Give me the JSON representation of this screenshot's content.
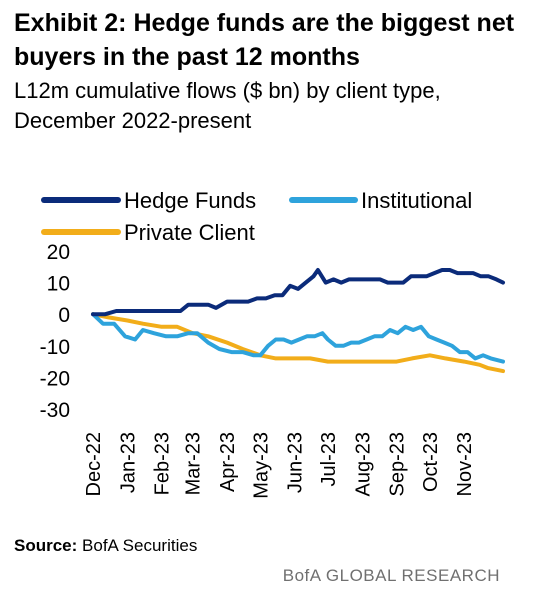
{
  "header": {
    "title": "Exhibit 2: Hedge funds are the biggest net buyers in the past 12 months",
    "subtitle": "L12m cumulative flows ($ bn) by client type, December 2022-present"
  },
  "footer": {
    "source_label": "Source:",
    "source_text": "BofA Securities",
    "brand": "BofA GLOBAL RESEARCH"
  },
  "chart_data": {
    "type": "line",
    "title": "Exhibit 2: Hedge funds are the biggest net buyers in the past 12 months",
    "subtitle": "L12m cumulative flows ($ bn) by client type, December 2022-present",
    "xlabel": "",
    "ylabel": "",
    "ylim": [
      -30,
      20
    ],
    "yticks": [
      20,
      10,
      0,
      -10,
      -20,
      -30
    ],
    "xlim": [
      "2022-12-01",
      "2023-12-06"
    ],
    "categories": [
      "Dec-22",
      "Jan-23",
      "Feb-23",
      "Mar-23",
      "Apr-23",
      "May-23",
      "Jun-23",
      "Jul-23",
      "Aug-23",
      "Sep-23",
      "Oct-23",
      "Nov-23"
    ],
    "category_dates": [
      "2022-12-01",
      "2023-01-01",
      "2023-02-01",
      "2023-03-01",
      "2023-04-01",
      "2023-05-01",
      "2023-06-01",
      "2023-07-01",
      "2023-08-01",
      "2023-09-01",
      "2023-10-01",
      "2023-11-01"
    ],
    "grid": false,
    "legend": "top",
    "colors": {
      "Hedge Funds": "#0b2b7a",
      "Institutional": "#2ea3dc",
      "Private Client": "#f2ad1a"
    },
    "series": [
      {
        "name": "Hedge Funds",
        "points": [
          [
            "2022-12-01",
            0
          ],
          [
            "2022-12-12",
            0
          ],
          [
            "2022-12-22",
            1
          ],
          [
            "2023-01-05",
            1
          ],
          [
            "2023-01-15",
            1
          ],
          [
            "2023-01-28",
            1
          ],
          [
            "2023-02-08",
            1
          ],
          [
            "2023-02-18",
            1
          ],
          [
            "2023-02-25",
            3
          ],
          [
            "2023-03-05",
            3
          ],
          [
            "2023-03-15",
            3
          ],
          [
            "2023-03-22",
            2
          ],
          [
            "2023-04-01",
            4
          ],
          [
            "2023-04-10",
            4
          ],
          [
            "2023-04-20",
            4
          ],
          [
            "2023-04-28",
            5
          ],
          [
            "2023-05-06",
            5
          ],
          [
            "2023-05-14",
            6
          ],
          [
            "2023-05-21",
            6
          ],
          [
            "2023-05-28",
            9
          ],
          [
            "2023-06-04",
            8
          ],
          [
            "2023-06-11",
            10
          ],
          [
            "2023-06-18",
            12
          ],
          [
            "2023-06-22",
            14
          ],
          [
            "2023-06-29",
            10
          ],
          [
            "2023-07-06",
            11
          ],
          [
            "2023-07-13",
            10
          ],
          [
            "2023-07-20",
            11
          ],
          [
            "2023-07-27",
            11
          ],
          [
            "2023-08-03",
            11
          ],
          [
            "2023-08-10",
            11
          ],
          [
            "2023-08-17",
            11
          ],
          [
            "2023-08-24",
            10
          ],
          [
            "2023-08-31",
            10
          ],
          [
            "2023-09-07",
            10
          ],
          [
            "2023-09-14",
            12
          ],
          [
            "2023-09-21",
            12
          ],
          [
            "2023-09-28",
            12
          ],
          [
            "2023-10-05",
            13
          ],
          [
            "2023-10-12",
            14
          ],
          [
            "2023-10-19",
            14
          ],
          [
            "2023-10-26",
            13
          ],
          [
            "2023-11-02",
            13
          ],
          [
            "2023-11-09",
            13
          ],
          [
            "2023-11-16",
            12
          ],
          [
            "2023-11-23",
            12
          ],
          [
            "2023-11-30",
            11
          ],
          [
            "2023-12-06",
            10
          ]
        ]
      },
      {
        "name": "Institutional",
        "points": [
          [
            "2022-12-01",
            0
          ],
          [
            "2022-12-10",
            -3
          ],
          [
            "2022-12-20",
            -3
          ],
          [
            "2022-12-30",
            -7
          ],
          [
            "2023-01-08",
            -8
          ],
          [
            "2023-01-15",
            -5
          ],
          [
            "2023-01-25",
            -6
          ],
          [
            "2023-02-05",
            -7
          ],
          [
            "2023-02-15",
            -7
          ],
          [
            "2023-02-25",
            -6
          ],
          [
            "2023-03-05",
            -6
          ],
          [
            "2023-03-15",
            -9
          ],
          [
            "2023-03-25",
            -11
          ],
          [
            "2023-04-05",
            -12
          ],
          [
            "2023-04-15",
            -12
          ],
          [
            "2023-04-25",
            -13
          ],
          [
            "2023-05-01",
            -13
          ],
          [
            "2023-05-08",
            -10
          ],
          [
            "2023-05-15",
            -8
          ],
          [
            "2023-05-22",
            -8
          ],
          [
            "2023-05-29",
            -9
          ],
          [
            "2023-06-05",
            -8
          ],
          [
            "2023-06-12",
            -7
          ],
          [
            "2023-06-19",
            -7
          ],
          [
            "2023-06-26",
            -6
          ],
          [
            "2023-07-01",
            -8
          ],
          [
            "2023-07-08",
            -10
          ],
          [
            "2023-07-15",
            -10
          ],
          [
            "2023-07-22",
            -9
          ],
          [
            "2023-07-29",
            -9
          ],
          [
            "2023-08-05",
            -8
          ],
          [
            "2023-08-12",
            -7
          ],
          [
            "2023-08-19",
            -7
          ],
          [
            "2023-08-26",
            -5
          ],
          [
            "2023-09-02",
            -6
          ],
          [
            "2023-09-09",
            -4
          ],
          [
            "2023-09-16",
            -5
          ],
          [
            "2023-09-23",
            -4
          ],
          [
            "2023-09-30",
            -7
          ],
          [
            "2023-10-07",
            -8
          ],
          [
            "2023-10-14",
            -9
          ],
          [
            "2023-10-21",
            -10
          ],
          [
            "2023-10-28",
            -12
          ],
          [
            "2023-11-04",
            -12
          ],
          [
            "2023-11-11",
            -14
          ],
          [
            "2023-11-18",
            -13
          ],
          [
            "2023-11-25",
            -14
          ],
          [
            "2023-12-06",
            -15
          ]
        ]
      },
      {
        "name": "Private Client",
        "points": [
          [
            "2022-12-01",
            0
          ],
          [
            "2022-12-15",
            -1
          ],
          [
            "2023-01-01",
            -2
          ],
          [
            "2023-01-15",
            -3
          ],
          [
            "2023-02-01",
            -4
          ],
          [
            "2023-02-15",
            -4
          ],
          [
            "2023-03-01",
            -6
          ],
          [
            "2023-03-15",
            -7
          ],
          [
            "2023-04-01",
            -9
          ],
          [
            "2023-04-15",
            -11
          ],
          [
            "2023-05-01",
            -13
          ],
          [
            "2023-05-15",
            -14
          ],
          [
            "2023-06-01",
            -14
          ],
          [
            "2023-06-15",
            -14
          ],
          [
            "2023-07-01",
            -15
          ],
          [
            "2023-07-15",
            -15
          ],
          [
            "2023-08-01",
            -15
          ],
          [
            "2023-08-15",
            -15
          ],
          [
            "2023-09-01",
            -15
          ],
          [
            "2023-09-15",
            -14
          ],
          [
            "2023-10-01",
            -13
          ],
          [
            "2023-10-15",
            -14
          ],
          [
            "2023-11-01",
            -15
          ],
          [
            "2023-11-15",
            -16
          ],
          [
            "2023-11-22",
            -17
          ],
          [
            "2023-12-06",
            -18
          ]
        ]
      }
    ]
  }
}
